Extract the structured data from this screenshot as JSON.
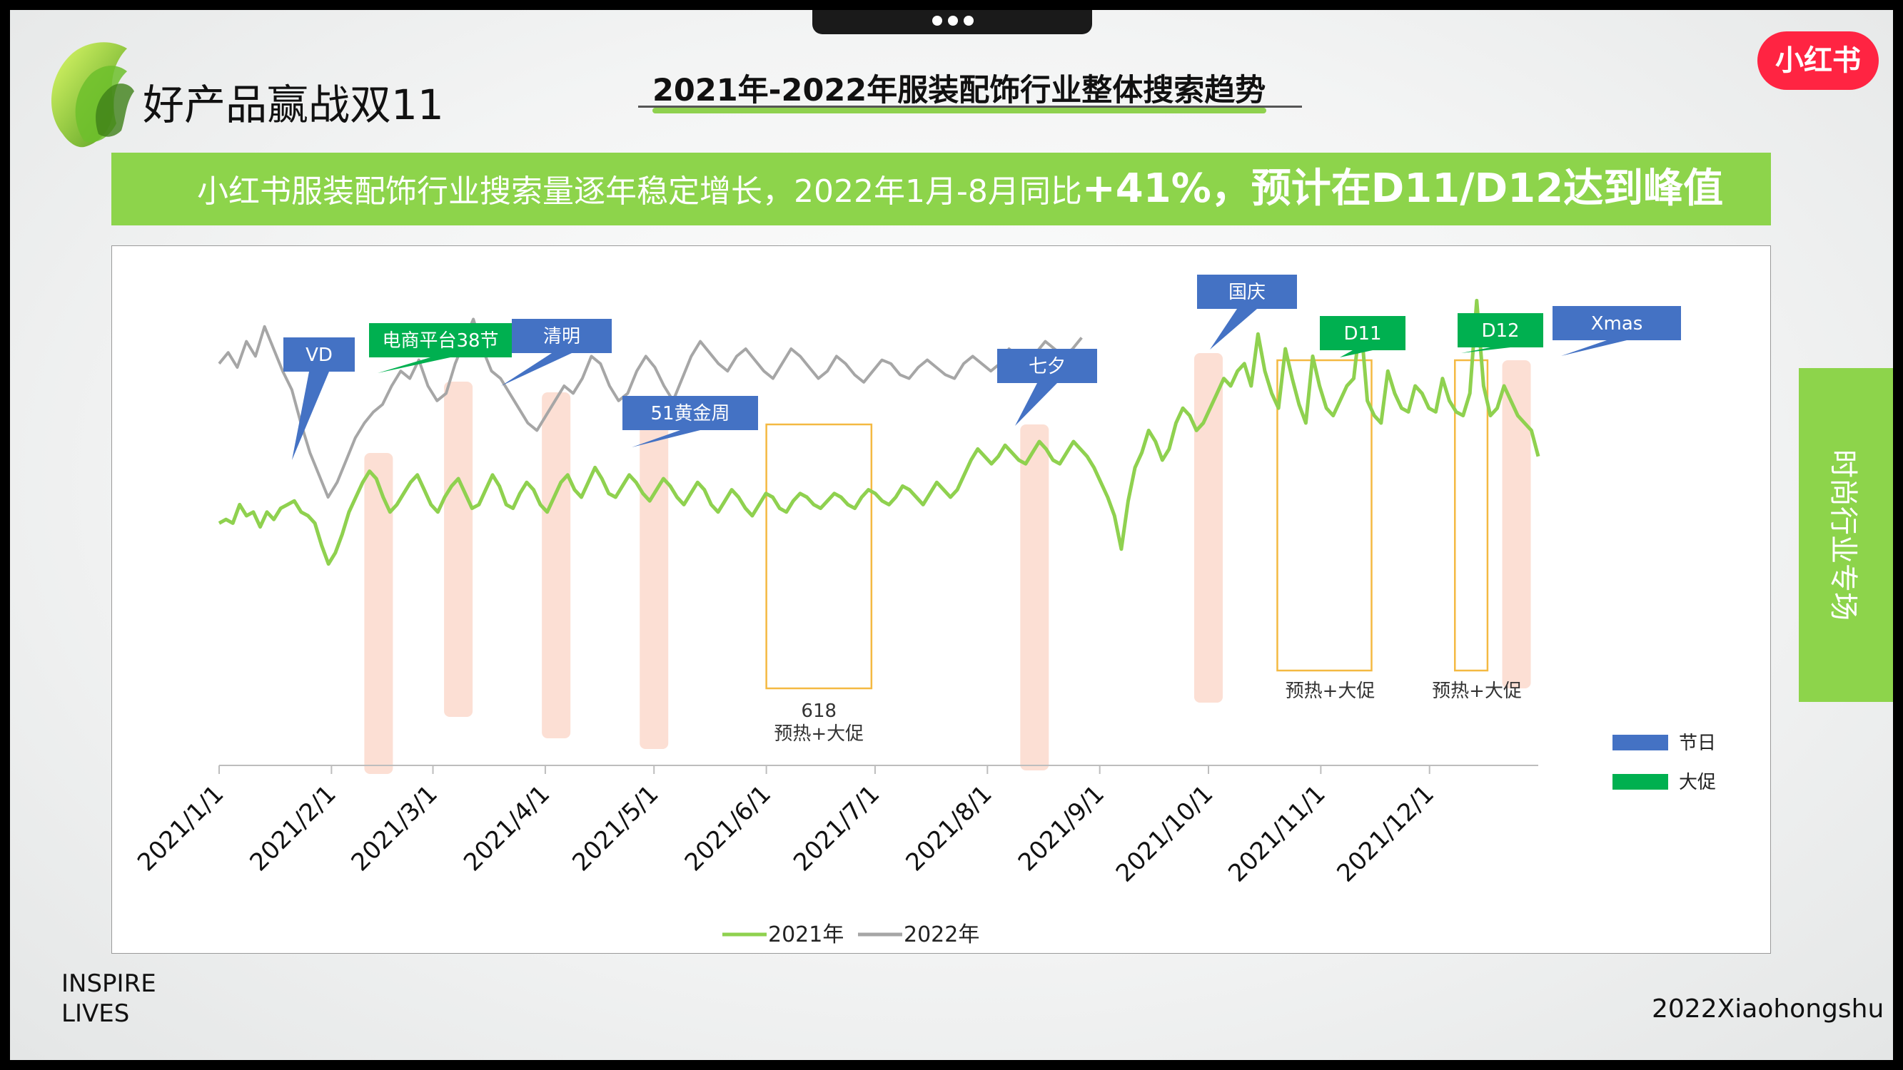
{
  "header": {
    "brand_title": "好产品赢战双11",
    "page_title": "2021年-2022年服装配饰行业整体搜索趋势",
    "badge": "小红书"
  },
  "banner": {
    "part1": "小红书服装配饰行业搜索量逐年稳定增长，2022年1月-8月同比",
    "part2": "+41%，预计在D11/D12达到峰值"
  },
  "side_tab": "时尚行业专场",
  "footer": {
    "left_line1": "INSPIRE",
    "left_line2": "LIVES",
    "right": "2022Xiaohongshu"
  },
  "colors": {
    "series_2021": "#8fd14f",
    "series_2022": "#a6a6a6",
    "holiday": "#4472c4",
    "promo": "#00b050",
    "highlight_band": "#fbd9cc",
    "promo_box": "#f4b942",
    "banner": "#8dd44b",
    "badge": "#ff2442"
  },
  "chart_data": {
    "type": "line",
    "x_ticks": [
      "2021/1/1",
      "2021/2/1",
      "2021/3/1",
      "2021/4/1",
      "2021/5/1",
      "2021/6/1",
      "2021/7/1",
      "2021/8/1",
      "2021/9/1",
      "2021/10/1",
      "2021/11/1",
      "2021/12/1"
    ],
    "x_range": [
      "2021-01-01",
      "2021-12-31"
    ],
    "y_axis_shown": false,
    "y_range": [
      0,
      100
    ],
    "grid": false,
    "legend_position": "bottom",
    "series": [
      {
        "name": "2021年",
        "x_start": "2021-01-01",
        "x_end": "2021-12-31",
        "values": [
          33,
          34,
          33,
          38,
          35,
          36,
          32,
          36,
          34,
          37,
          38,
          39,
          36,
          35,
          33,
          27,
          22,
          25,
          30,
          36,
          40,
          44,
          47,
          45,
          40,
          36,
          38,
          41,
          44,
          46,
          42,
          38,
          36,
          40,
          43,
          45,
          41,
          37,
          38,
          42,
          46,
          43,
          38,
          37,
          41,
          44,
          42,
          38,
          36,
          40,
          44,
          46,
          42,
          40,
          44,
          48,
          45,
          41,
          40,
          43,
          46,
          44,
          41,
          39,
          42,
          45,
          43,
          40,
          38,
          41,
          44,
          42,
          38,
          36,
          39,
          42,
          40,
          37,
          35,
          38,
          41,
          40,
          37,
          36,
          39,
          41,
          40,
          38,
          37,
          39,
          41,
          40,
          38,
          37,
          40,
          42,
          41,
          39,
          38,
          40,
          43,
          42,
          40,
          38,
          41,
          44,
          42,
          40,
          42,
          46,
          50,
          53,
          51,
          49,
          51,
          54,
          52,
          50,
          49,
          52,
          55,
          53,
          50,
          49,
          52,
          55,
          53,
          51,
          48,
          44,
          40,
          35,
          26,
          39,
          48,
          52,
          58,
          55,
          50,
          53,
          60,
          64,
          62,
          58,
          60,
          64,
          68,
          72,
          70,
          74,
          76,
          70,
          84,
          74,
          68,
          64,
          80,
          72,
          65,
          60,
          78,
          70,
          64,
          62,
          66,
          70,
          72,
          88,
          66,
          62,
          60,
          74,
          68,
          64,
          63,
          70,
          68,
          64,
          63,
          72,
          66,
          63,
          62,
          68,
          93,
          70,
          62,
          64,
          70,
          66,
          62,
          60,
          58,
          51
        ],
        "note": "weekly-ish sampled trend, shown as relative search index"
      },
      {
        "name": "2022年",
        "x_start": "2022-01-01",
        "x_end": "2022-08-27",
        "values": [
          76,
          79,
          75,
          82,
          78,
          86,
          80,
          74,
          69,
          60,
          52,
          46,
          40,
          44,
          50,
          56,
          60,
          63,
          65,
          70,
          74,
          72,
          77,
          70,
          66,
          68,
          76,
          82,
          88,
          80,
          74,
          72,
          68,
          64,
          60,
          58,
          62,
          66,
          70,
          68,
          72,
          78,
          76,
          70,
          66,
          68,
          74,
          78,
          75,
          70,
          66,
          72,
          78,
          82,
          79,
          76,
          74,
          78,
          80,
          77,
          74,
          72,
          76,
          80,
          78,
          75,
          72,
          74,
          78,
          76,
          73,
          71,
          74,
          77,
          76,
          73,
          72,
          75,
          77,
          75,
          73,
          72,
          76,
          78,
          76,
          74,
          76,
          80,
          78,
          76,
          79,
          82,
          80,
          78,
          80,
          83
        ],
        "note": "trend ends around late August 2022"
      }
    ],
    "holiday_labels": [
      {
        "label": "VD",
        "date": "2021-02-14"
      },
      {
        "label": "清明",
        "date": "2021-04-04"
      },
      {
        "label": "51黄金周",
        "date": "2021-05-01"
      },
      {
        "label": "七夕",
        "date": "2021-08-14"
      },
      {
        "label": "国庆",
        "date": "2021-10-01"
      },
      {
        "label": "Xmas",
        "date": "2021-12-25"
      }
    ],
    "promo_labels": [
      {
        "label": "电商平台38节",
        "date": "2021-03-08"
      },
      {
        "label": "D11",
        "date": "2021-11-11"
      },
      {
        "label": "D12",
        "date": "2021-12-12"
      }
    ],
    "promo_boxes": [
      {
        "label_line1": "618",
        "label_line2": "预热+大促",
        "start": "2021-06-01",
        "end": "2021-06-30"
      },
      {
        "label_line1": "",
        "label_line2": "预热+大促",
        "start": "2021-10-20",
        "end": "2021-11-15"
      },
      {
        "label_line1": "",
        "label_line2": "预热+大促",
        "start": "2021-12-08",
        "end": "2021-12-17"
      }
    ],
    "legend_markers": [
      {
        "name": "节日",
        "color": "#4472c4"
      },
      {
        "name": "大促",
        "color": "#00b050"
      }
    ],
    "legend_series": [
      {
        "name": "2021年",
        "color": "#8fd14f"
      },
      {
        "name": "2022年",
        "color": "#a6a6a6"
      }
    ]
  }
}
